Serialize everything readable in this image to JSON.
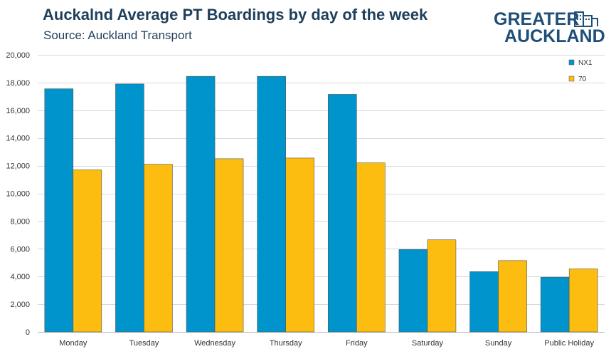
{
  "header": {
    "title": "Auckalnd Average PT Boardings by day of the week",
    "subtitle": "Source: Auckland Transport"
  },
  "logo": {
    "line1": "GREATER",
    "line2": "AUCKLAND",
    "color": "#1f4e79"
  },
  "chart_data": {
    "type": "bar",
    "title": "Auckalnd Average PT Boardings by day of the week",
    "subtitle": "Source: Auckland Transport",
    "categories": [
      "Monday",
      "Tuesday",
      "Wednesday",
      "Thursday",
      "Friday",
      "Saturday",
      "Sunday",
      "Public Holiday"
    ],
    "series": [
      {
        "name": "NX1",
        "color": "#0094cd",
        "values": [
          17550,
          17900,
          18450,
          18450,
          17150,
          5950,
          4350,
          3950
        ]
      },
      {
        "name": "70",
        "color": "#fdbd10",
        "values": [
          11700,
          12100,
          12500,
          12550,
          12200,
          6650,
          5150,
          4550
        ]
      }
    ],
    "ylim": [
      0,
      20000
    ],
    "yticks": [
      0,
      2000,
      4000,
      6000,
      8000,
      10000,
      12000,
      14000,
      16000,
      18000,
      20000
    ],
    "ytick_labels": [
      "0",
      "2,000",
      "4,000",
      "6,000",
      "8,000",
      "10,000",
      "12,000",
      "14,000",
      "16,000",
      "18,000",
      "20,000"
    ],
    "grid": true,
    "legend_position": "top-right"
  }
}
